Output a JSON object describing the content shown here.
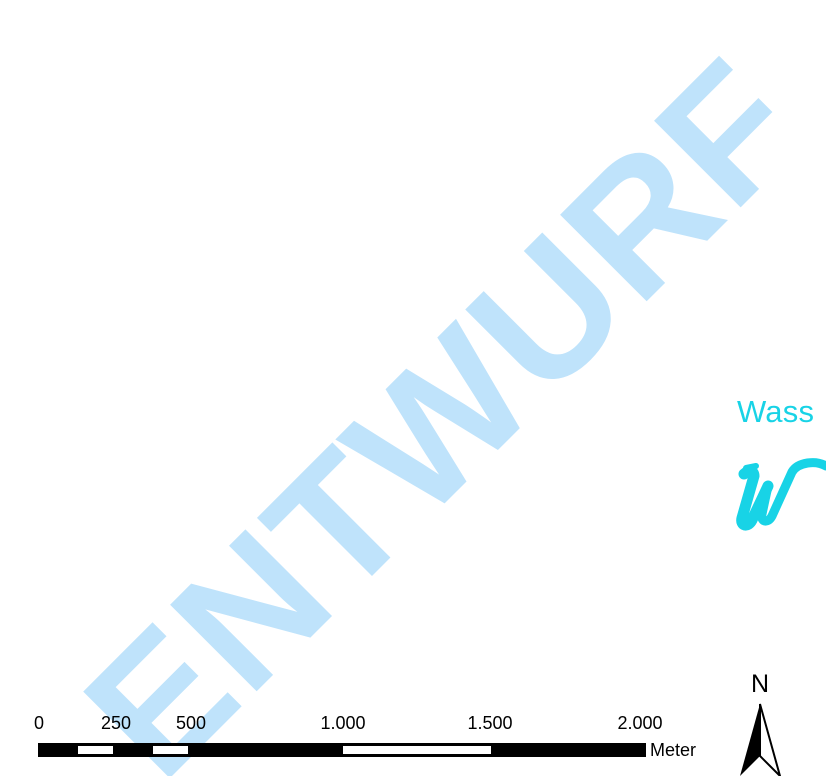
{
  "watermark": {
    "text": "ENTWURF",
    "color": "#bfe3fb"
  },
  "brand": {
    "title": "Wass",
    "color": "#18d3e6",
    "logo_icon": "w-brush-logo-icon"
  },
  "scale_bar": {
    "tick_labels": [
      "0",
      "250",
      "500",
      "1.000",
      "1.500",
      "2.000"
    ],
    "unit": "Meter",
    "colors": {
      "filled": "#000000",
      "empty": "#ffffff"
    }
  },
  "north_arrow": {
    "label": "N",
    "icon": "north-arrow-icon"
  }
}
